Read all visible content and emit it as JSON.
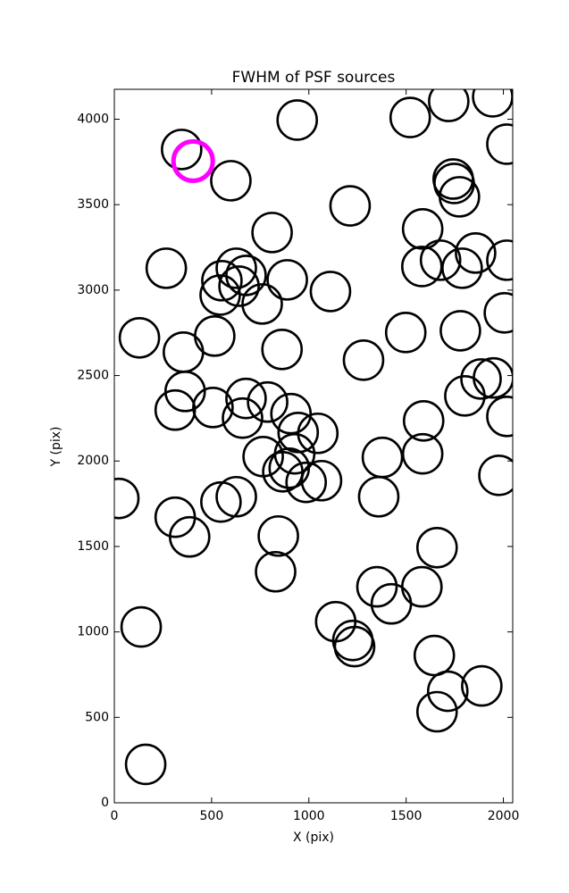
{
  "chart_data": {
    "type": "scatter",
    "title": "FWHM of PSF sources",
    "x_label": "X (pix)",
    "y_label": "Y (pix)",
    "xlim": [
      0,
      2048
    ],
    "ylim": [
      0,
      4175
    ],
    "xticks": [
      0,
      500,
      1000,
      1500,
      2000
    ],
    "yticks": [
      0,
      500,
      1000,
      1500,
      2000,
      2500,
      3000,
      3500,
      4000
    ],
    "grid": false,
    "series": [
      {
        "color": "#000000",
        "x": [
          346,
          599,
          940,
          1521,
          1719,
          1945,
          2018,
          1742,
          1747,
          1774,
          1212,
          811,
          267,
          627,
          553,
          677,
          641,
          544,
          760,
          889,
          1111,
          1585,
          1581,
          1677,
          1788,
          1857,
          2018,
          2005,
          129,
          355,
          516,
          862,
          1281,
          1498,
          1779,
          364,
          313,
          507,
          677,
          659,
          788,
          908,
          945,
          1046,
          1590,
          1802,
          1885,
          1949,
          2018,
          765,
          899,
          927,
          866,
          986,
          1065,
          1378,
          1585,
          1977,
          23,
          548,
          627,
          1359,
          313,
          387,
          843,
          829,
          1659,
          1350,
          1424,
          1581,
          138,
          1138,
          1226,
          1235,
          1645,
          1714,
          1889,
          1659,
          161
        ],
        "y": [
          3823,
          3640,
          3995,
          4010,
          4104,
          4131,
          3854,
          3650,
          3624,
          3546,
          3493,
          3337,
          3128,
          3128,
          3055,
          3086,
          3023,
          2971,
          2919,
          3060,
          2992,
          3358,
          3138,
          3175,
          3128,
          3217,
          3175,
          2867,
          2721,
          2637,
          2731,
          2653,
          2590,
          2752,
          2762,
          2407,
          2298,
          2313,
          2366,
          2251,
          2345,
          2277,
          2167,
          2162,
          2235,
          2381,
          2480,
          2486,
          2261,
          2026,
          1958,
          2042,
          1937,
          1875,
          1885,
          2021,
          2042,
          1916,
          1781,
          1760,
          1791,
          1791,
          1671,
          1556,
          1561,
          1352,
          1493,
          1264,
          1164,
          1264,
          1029,
          1060,
          950,
          914,
          862,
          653,
          684,
          533,
          225
        ]
      },
      {
        "color": "#ff00ff",
        "x": [
          405
        ],
        "y": [
          3755
        ]
      }
    ]
  }
}
